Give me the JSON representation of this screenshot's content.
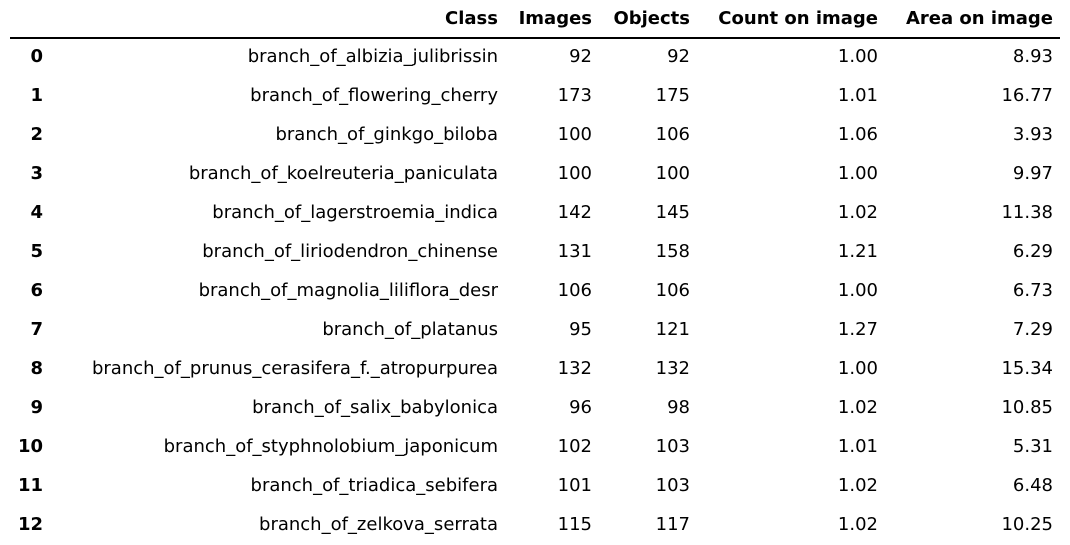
{
  "table": {
    "columns": [
      "Class",
      "Images",
      "Objects",
      "Count on image",
      "Area on image"
    ],
    "rows": [
      {
        "index": "0",
        "class": "branch_of_albizia_julibrissin",
        "images": "92",
        "objects": "92",
        "count": "1.00",
        "area": "8.93"
      },
      {
        "index": "1",
        "class": "branch_of_flowering_cherry",
        "images": "173",
        "objects": "175",
        "count": "1.01",
        "area": "16.77"
      },
      {
        "index": "2",
        "class": "branch_of_ginkgo_biloba",
        "images": "100",
        "objects": "106",
        "count": "1.06",
        "area": "3.93"
      },
      {
        "index": "3",
        "class": "branch_of_koelreuteria_paniculata",
        "images": "100",
        "objects": "100",
        "count": "1.00",
        "area": "9.97"
      },
      {
        "index": "4",
        "class": "branch_of_lagerstroemia_indica",
        "images": "142",
        "objects": "145",
        "count": "1.02",
        "area": "11.38"
      },
      {
        "index": "5",
        "class": "branch_of_liriodendron_chinense",
        "images": "131",
        "objects": "158",
        "count": "1.21",
        "area": "6.29"
      },
      {
        "index": "6",
        "class": "branch_of_magnolia_liliflora_desr",
        "images": "106",
        "objects": "106",
        "count": "1.00",
        "area": "6.73"
      },
      {
        "index": "7",
        "class": "branch_of_platanus",
        "images": "95",
        "objects": "121",
        "count": "1.27",
        "area": "7.29"
      },
      {
        "index": "8",
        "class": "branch_of_prunus_cerasifera_f._atropurpurea",
        "images": "132",
        "objects": "132",
        "count": "1.00",
        "area": "15.34"
      },
      {
        "index": "9",
        "class": "branch_of_salix_babylonica",
        "images": "96",
        "objects": "98",
        "count": "1.02",
        "area": "10.85"
      },
      {
        "index": "10",
        "class": "branch_of_styphnolobium_japonicum",
        "images": "102",
        "objects": "103",
        "count": "1.01",
        "area": "5.31"
      },
      {
        "index": "11",
        "class": "branch_of_triadica_sebifera",
        "images": "101",
        "objects": "103",
        "count": "1.02",
        "area": "6.48"
      },
      {
        "index": "12",
        "class": "branch_of_zelkova_serrata",
        "images": "115",
        "objects": "117",
        "count": "1.02",
        "area": "10.25"
      }
    ]
  }
}
